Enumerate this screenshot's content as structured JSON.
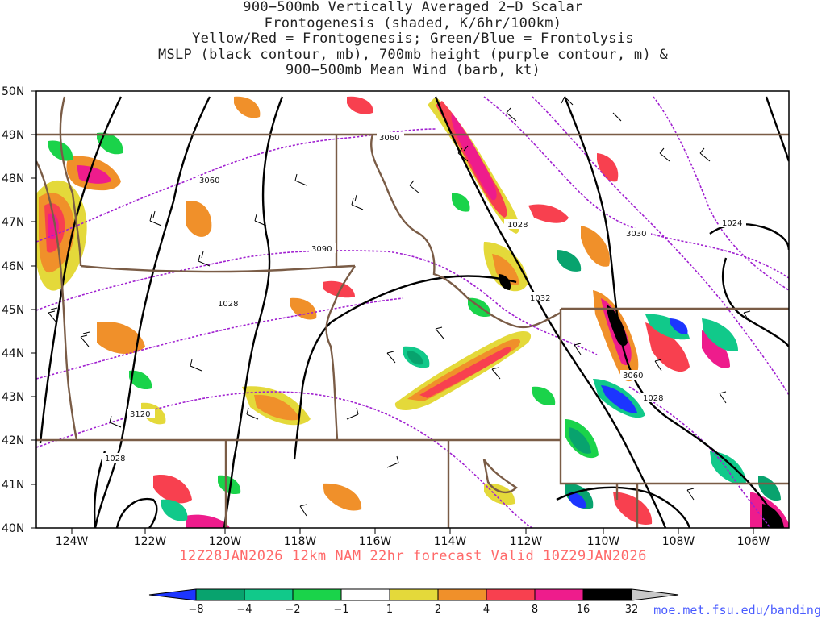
{
  "title_lines": [
    "900−500mb Vertically Averaged 2−D Scalar",
    "Frontogenesis (shaded, K/6hr/100km)",
    "Yellow/Red = Frontogenesis;  Green/Blue = Frontolysis",
    "MSLP (black contour, mb), 700mb height (purple contour, m) &",
    "900−500mb Mean Wind (barb, kt)"
  ],
  "lat_labels": [
    "50N",
    "49N",
    "48N",
    "47N",
    "46N",
    "45N",
    "44N",
    "43N",
    "42N",
    "41N",
    "40N"
  ],
  "lon_labels": [
    "124W",
    "122W",
    "120W",
    "118W",
    "116W",
    "114W",
    "112W",
    "110W",
    "108W",
    "106W"
  ],
  "contour_labels": {
    "mslp": [
      "1028",
      "1028",
      "1032",
      "1028",
      "1028",
      "1024"
    ],
    "height": [
      "3060",
      "3060",
      "3090",
      "3120",
      "3030",
      "3060"
    ]
  },
  "valid_text": "12Z28JAN2026 12km NAM 22hr forecast Valid 10Z29JAN2026",
  "colorbar": {
    "labels": [
      "−8",
      "−4",
      "−2",
      "−1",
      "1",
      "2",
      "4",
      "8",
      "16",
      "32"
    ],
    "colors": [
      "#1c35ff",
      "#08a36e",
      "#11c98a",
      "#1ad34a",
      "#ffffff",
      "#e4d93a",
      "#f0902a",
      "#f8404f",
      "#ee1c8c",
      "#000000",
      "#c8c8c8"
    ]
  },
  "credit": "moe.met.fsu.edu/banding",
  "colors": {
    "state_border": "#7a5c46",
    "mslp": "#000000",
    "height": "#a020d0"
  }
}
